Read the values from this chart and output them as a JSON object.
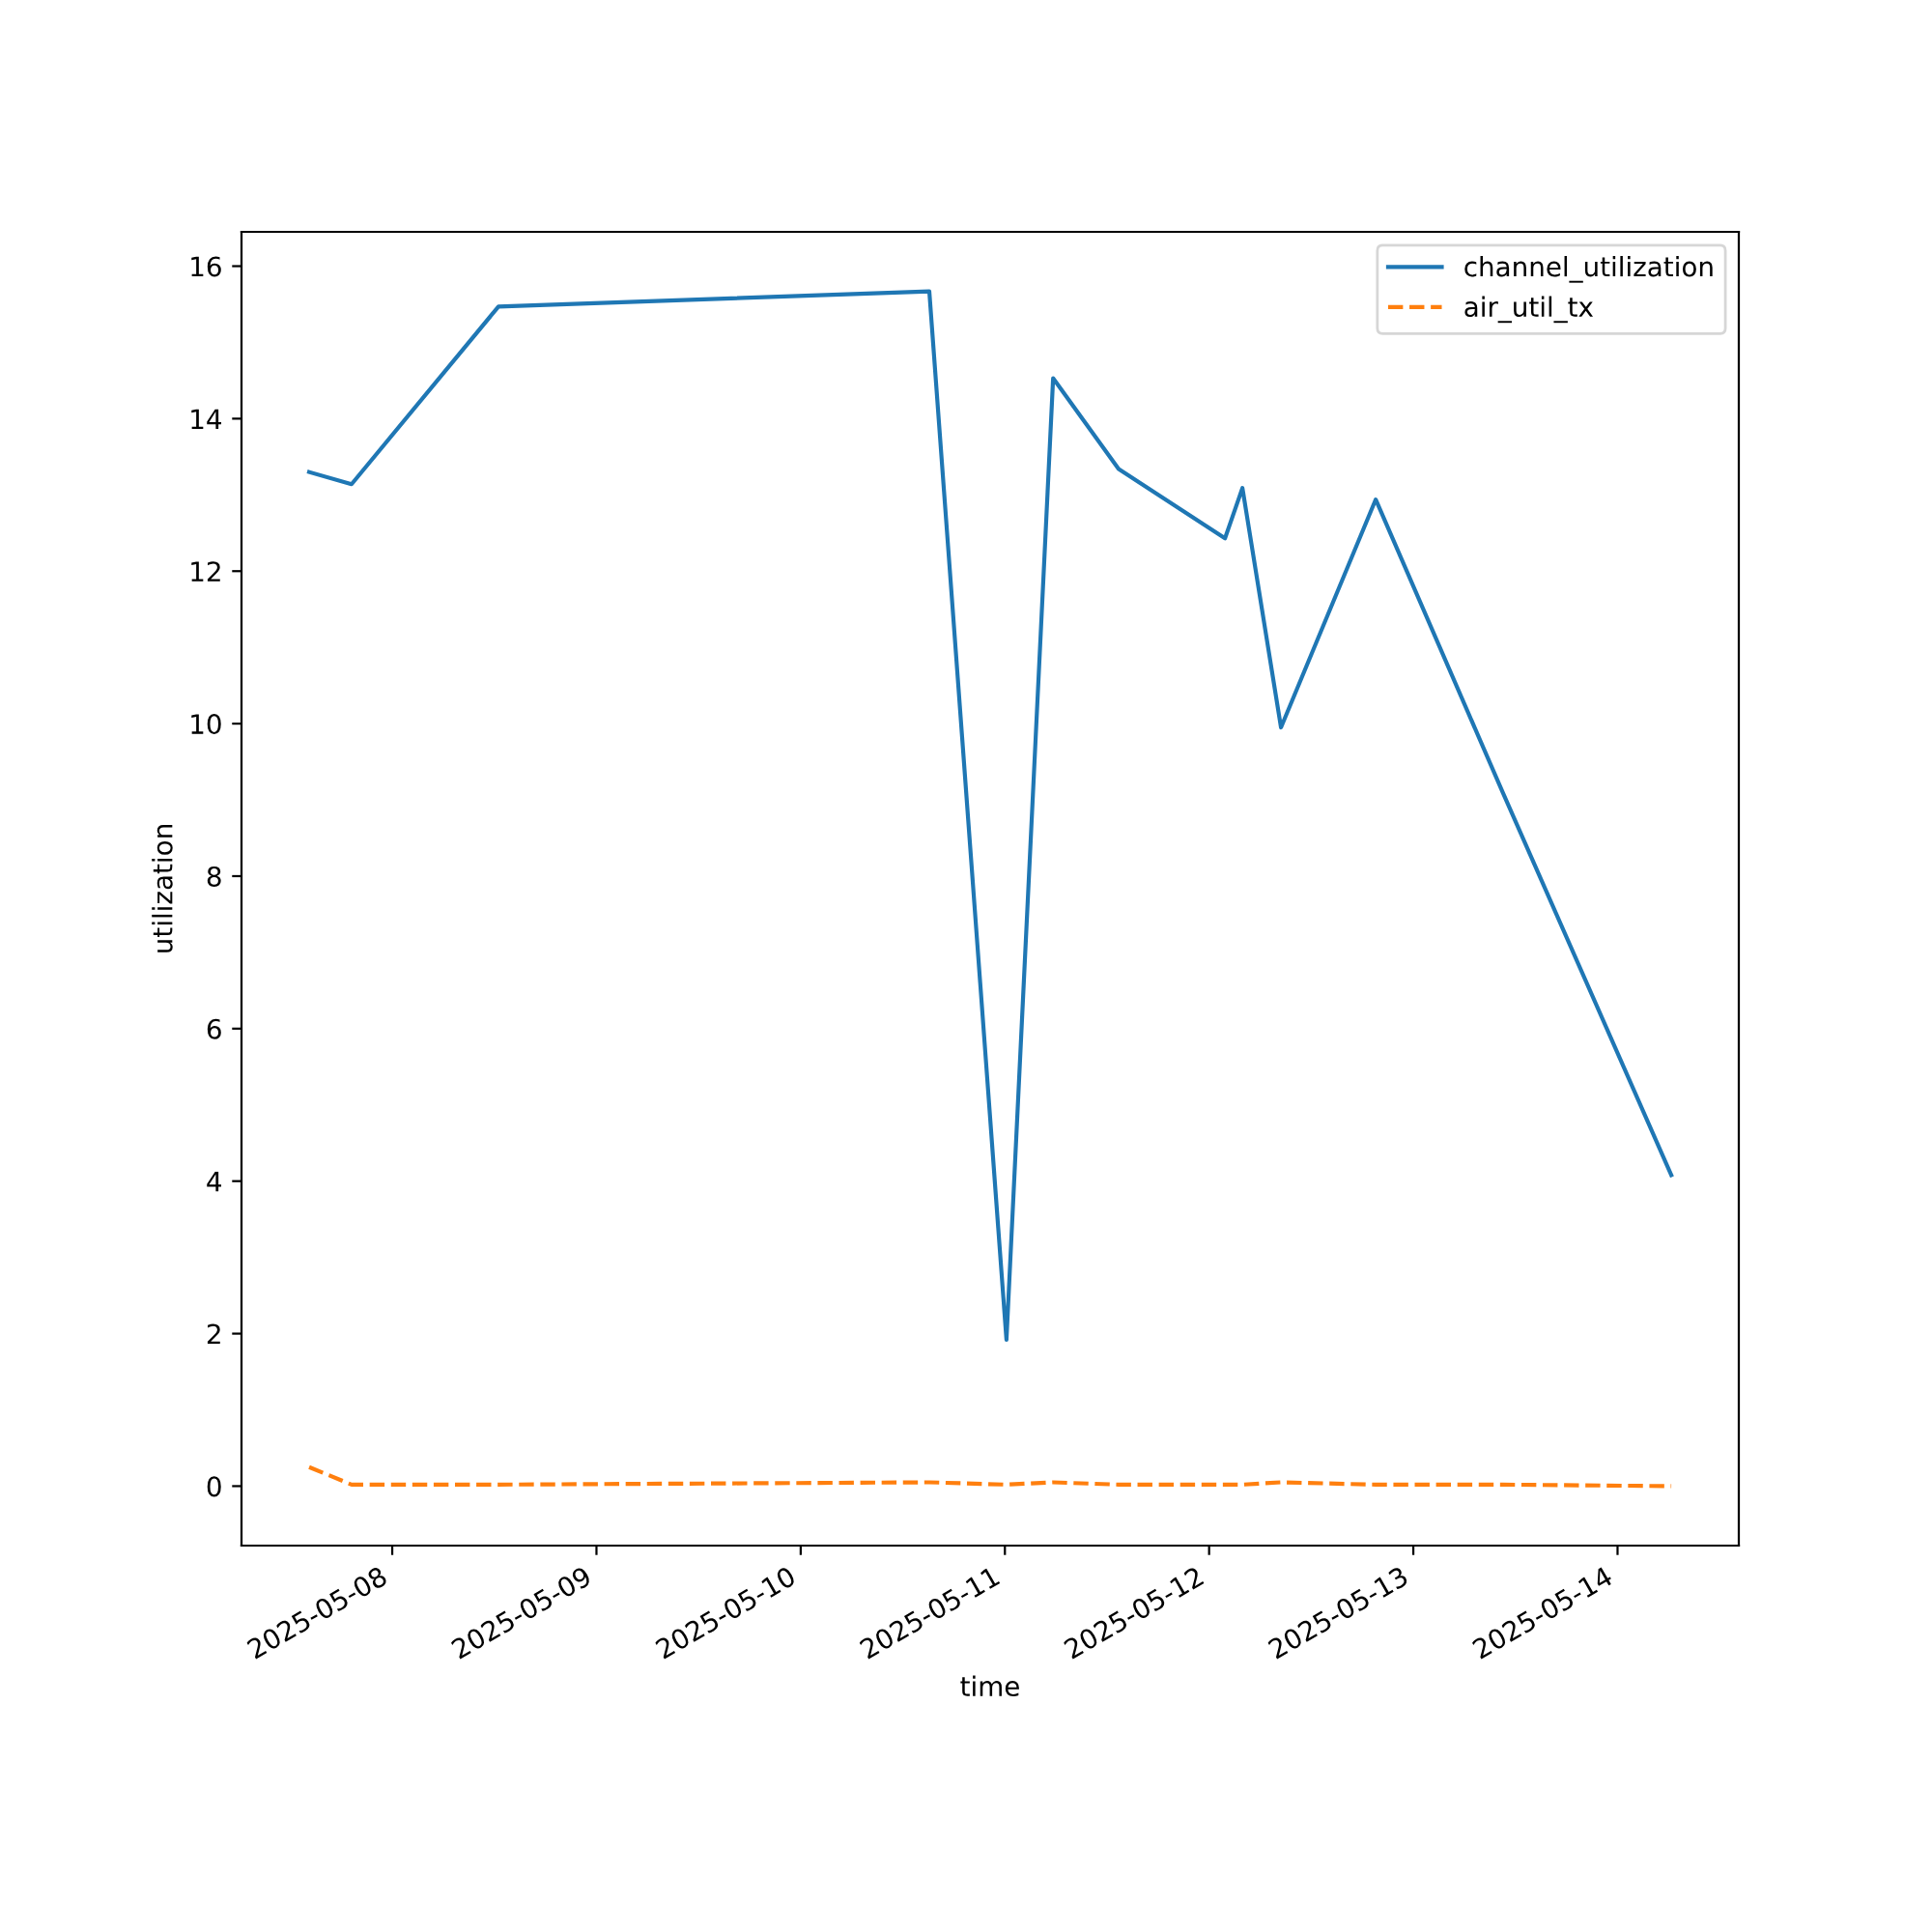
{
  "chart_data": {
    "type": "line",
    "xlabel": "time",
    "ylabel": "utilization",
    "x": [
      "2025-05-07T14:14",
      "2025-05-07T19:13",
      "2025-05-08T12:29",
      "2025-05-10T15:07",
      "2025-05-11T00:11",
      "2025-05-11T05:40",
      "2025-05-11T13:22",
      "2025-05-12T01:52",
      "2025-05-12T03:55",
      "2025-05-12T08:27",
      "2025-05-12T19:35",
      "2025-05-13T10:30",
      "2025-05-14T06:19"
    ],
    "series": [
      {
        "name": "channel_utilization",
        "color": "#1f77b4",
        "line_style": "solid",
        "values": [
          13.3,
          13.14,
          15.47,
          15.67,
          1.92,
          14.53,
          13.34,
          12.43,
          13.09,
          9.95,
          12.94,
          9.1,
          4.08
        ]
      },
      {
        "name": "air_util_tx",
        "color": "#ff7f0e",
        "line_style": "dashed",
        "values": [
          0.25,
          0.02,
          0.02,
          0.05,
          0.02,
          0.05,
          0.02,
          0.02,
          0.02,
          0.05,
          0.02,
          0.02,
          0.0
        ]
      }
    ],
    "xlim": [
      "2025-05-07T06:17",
      "2025-05-14T14:15"
    ],
    "xticks": [
      "2025-05-08",
      "2025-05-09",
      "2025-05-10",
      "2025-05-11",
      "2025-05-12",
      "2025-05-13",
      "2025-05-14"
    ],
    "ylim": [
      -0.78,
      16.45
    ],
    "yticks": [
      0,
      2,
      4,
      6,
      8,
      10,
      12,
      14,
      16
    ],
    "grid": false,
    "legend": "top right",
    "marker": "none"
  }
}
